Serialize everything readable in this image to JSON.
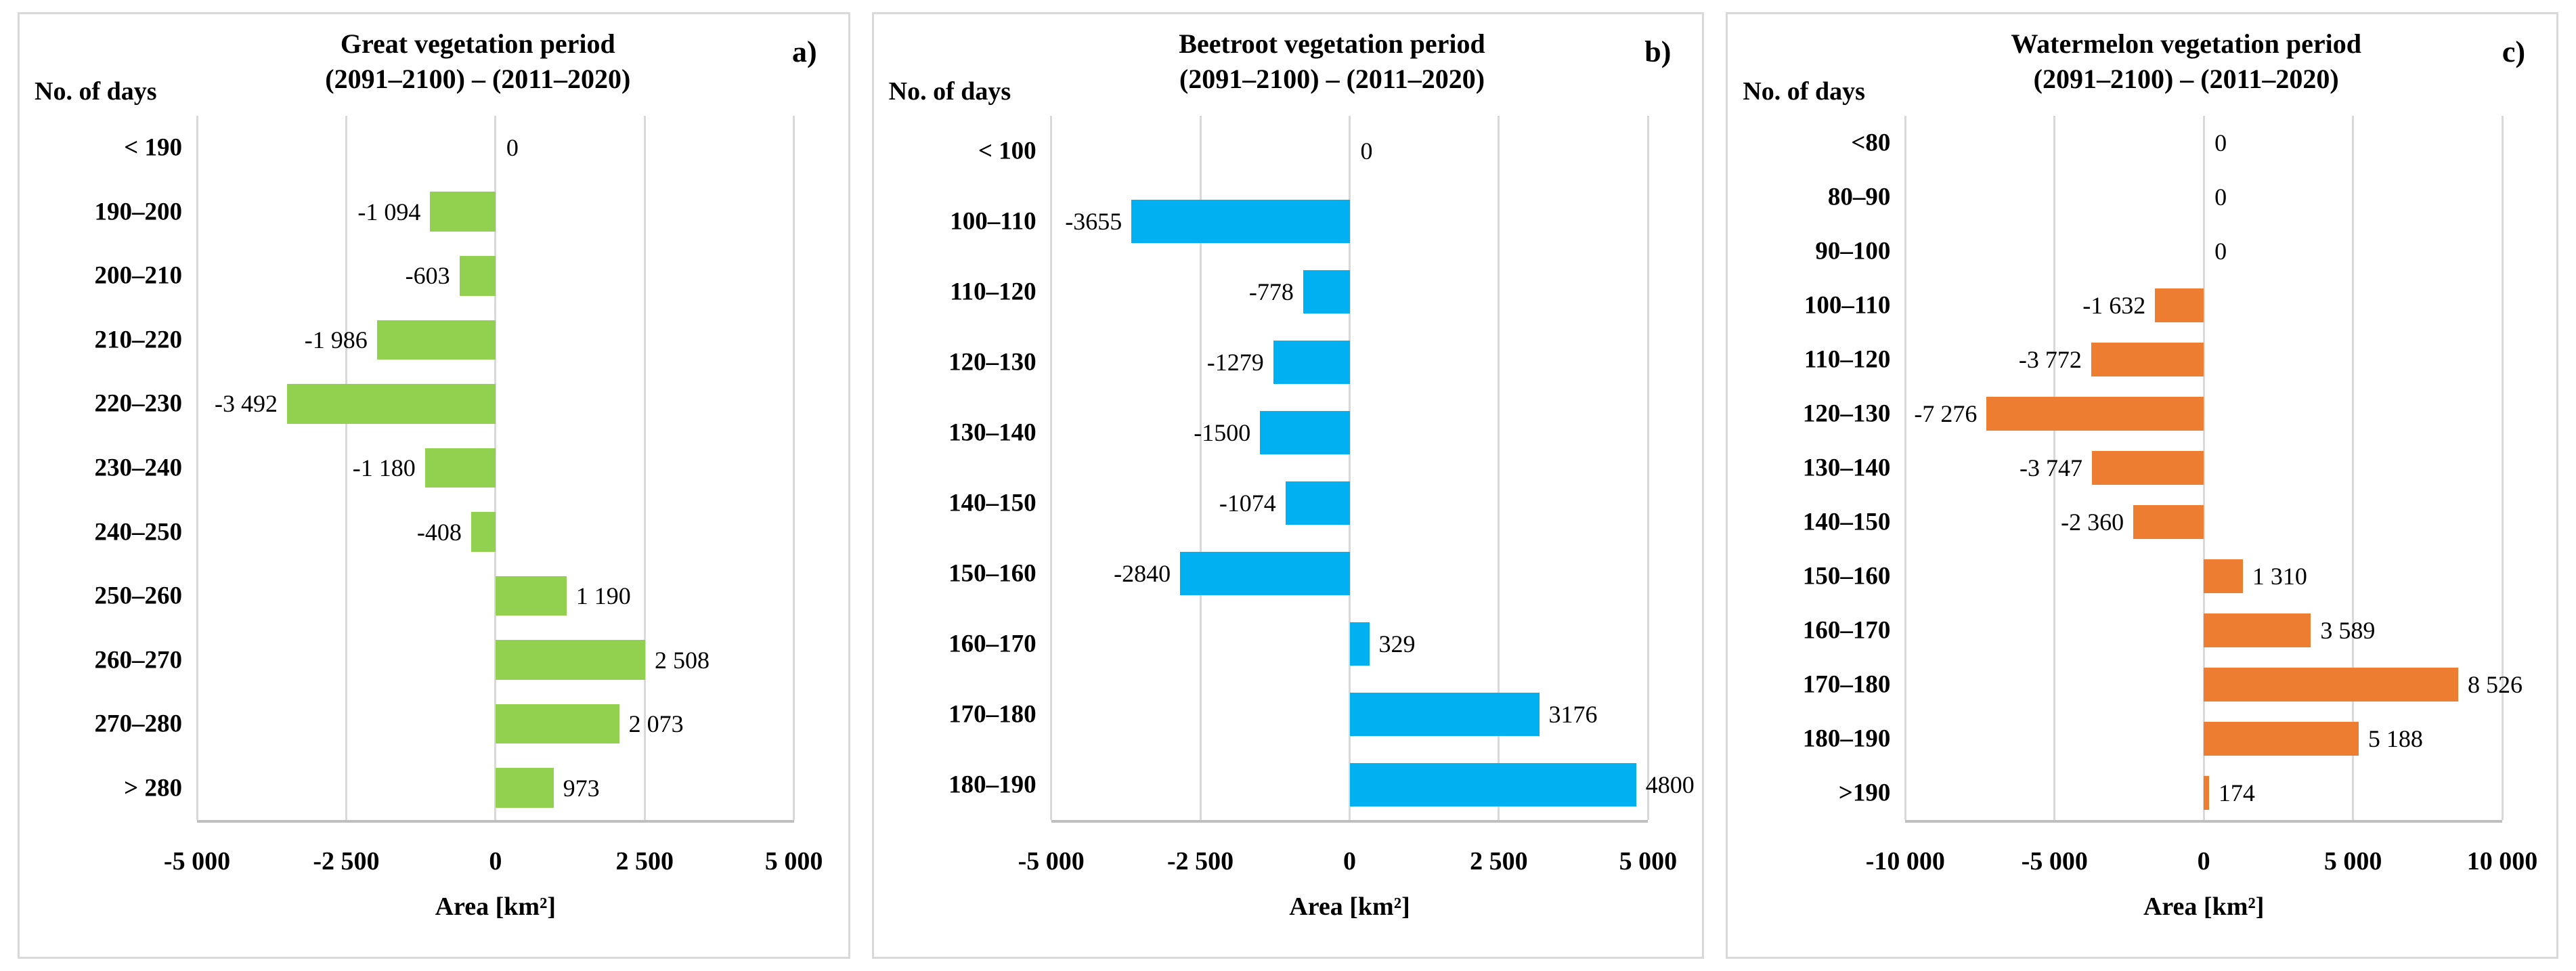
{
  "page": {
    "background": "#ffffff",
    "panel_border_color": "#d9d9d9",
    "gridline_color": "#d9d9d9",
    "axis_line_color": "#bfbfbf",
    "text_color": "#000000"
  },
  "chart_data": [
    {
      "type": "bar",
      "panel_letter": "a)",
      "title_line1": "Great vegetation period",
      "title_line2": "(2091–2100) – (2011–2020)",
      "categories_axis_title": "No. of days",
      "xlabel": "Area [km²]",
      "bar_color": "#92D050",
      "xlim": [
        -5000,
        5000
      ],
      "grid": true,
      "legend": "none",
      "ticks": [
        {
          "value": -5000,
          "label": "-5 000"
        },
        {
          "value": -2500,
          "label": "-2 500"
        },
        {
          "value": 0,
          "label": "0"
        },
        {
          "value": 2500,
          "label": "2 500"
        },
        {
          "value": 5000,
          "label": "5 000"
        }
      ],
      "categories": [
        "< 190",
        "190–200",
        "200–210",
        "210–220",
        "220–230",
        "230–240",
        "240–250",
        "250–260",
        "260–270",
        "270–280",
        "> 280"
      ],
      "values": [
        0,
        -1094,
        -603,
        -1986,
        -3492,
        -1180,
        -408,
        1190,
        2508,
        2073,
        973
      ],
      "value_labels": [
        "0",
        "-1 094",
        "-603",
        "-1 986",
        "-3 492",
        "-1 180",
        "-408",
        "1 190",
        "2 508",
        "2 073",
        "973"
      ]
    },
    {
      "type": "bar",
      "panel_letter": "b)",
      "title_line1": "Beetroot vegetation period",
      "title_line2": "(2091–2100) – (2011–2020)",
      "categories_axis_title": "No. of days",
      "xlabel": "Area [km²]",
      "bar_color": "#00B0F0",
      "xlim": [
        -5000,
        5000
      ],
      "grid": true,
      "legend": "none",
      "ticks": [
        {
          "value": -5000,
          "label": "-5 000"
        },
        {
          "value": -2500,
          "label": "-2 500"
        },
        {
          "value": 0,
          "label": "0"
        },
        {
          "value": 2500,
          "label": "2 500"
        },
        {
          "value": 5000,
          "label": "5 000"
        }
      ],
      "categories": [
        "< 100",
        "100–110",
        "110–120",
        "120–130",
        "130–140",
        "140–150",
        "150–160",
        "160–170",
        "170–180",
        "180–190"
      ],
      "values": [
        0,
        -3655,
        -778,
        -1279,
        -1500,
        -1074,
        -2840,
        329,
        3176,
        4800
      ],
      "value_labels": [
        "0",
        "-3655",
        "-778",
        "-1279",
        "-1500",
        "-1074",
        "-2840",
        "329",
        "3176",
        "4800"
      ]
    },
    {
      "type": "bar",
      "panel_letter": "c)",
      "title_line1": "Watermelon vegetation period",
      "title_line2": "(2091–2100) – (2011–2020)",
      "categories_axis_title": "No. of days",
      "xlabel": "Area [km²]",
      "bar_color": "#ED7D31",
      "xlim": [
        -10000,
        10000
      ],
      "grid": true,
      "legend": "none",
      "ticks": [
        {
          "value": -10000,
          "label": "-10 000"
        },
        {
          "value": -5000,
          "label": "-5 000"
        },
        {
          "value": 0,
          "label": "0"
        },
        {
          "value": 5000,
          "label": "5 000"
        },
        {
          "value": 10000,
          "label": "10 000"
        }
      ],
      "categories": [
        "<80",
        "80–90",
        "90–100",
        "100–110",
        "110–120",
        "120–130",
        "130–140",
        "140–150",
        "150–160",
        "160–170",
        "170–180",
        "180–190",
        ">190"
      ],
      "values": [
        0,
        0,
        0,
        -1632,
        -3772,
        -7276,
        -3747,
        -2360,
        1310,
        3589,
        8526,
        5188,
        174
      ],
      "value_labels": [
        "0",
        "0",
        "0",
        "-1 632",
        "-3 772",
        "-7 276",
        "-3 747",
        "-2 360",
        "1 310",
        "3 589",
        "8 526",
        "5 188",
        "174"
      ]
    }
  ]
}
